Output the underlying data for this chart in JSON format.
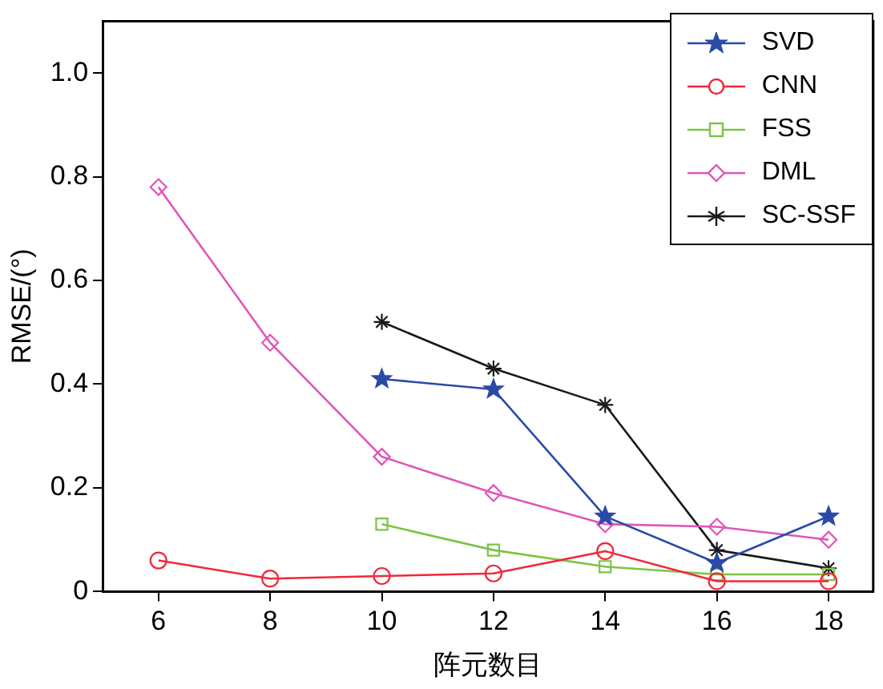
{
  "chart_data": {
    "type": "line",
    "xlabel": "阵元数目",
    "ylabel": "RMSE/(°)",
    "x": [
      6,
      8,
      10,
      12,
      14,
      16,
      18
    ],
    "xlim": [
      5,
      18.8
    ],
    "xticks": [
      6,
      8,
      10,
      12,
      14,
      16,
      18
    ],
    "ylim": [
      0,
      1.1
    ],
    "yticks": [
      0,
      0.2,
      0.4,
      0.6,
      0.8,
      {
        "value": 1,
        "label": "1.0"
      }
    ],
    "grid": false,
    "legend": "top right",
    "line_style": "solid",
    "series": [
      {
        "name": "SVD",
        "color": "#2b4aa8",
        "marker": "star",
        "values": [
          null,
          null,
          0.41,
          0.39,
          0.145,
          0.055,
          0.145
        ]
      },
      {
        "name": "CNN",
        "color": "#f0283c",
        "marker": "circle",
        "values": [
          0.06,
          0.025,
          0.03,
          0.035,
          0.078,
          0.02,
          0.02
        ]
      },
      {
        "name": "FSS",
        "color": "#7cc444",
        "marker": "square",
        "values": [
          null,
          null,
          0.13,
          0.08,
          0.048,
          0.033,
          0.033
        ]
      },
      {
        "name": "DML",
        "color": "#e055b8",
        "marker": "diamond",
        "values": [
          0.78,
          0.48,
          0.26,
          0.19,
          0.13,
          0.125,
          0.1
        ]
      },
      {
        "name": "SC-SSF",
        "color": "#1a1a1a",
        "marker": "cross",
        "values": [
          null,
          null,
          0.52,
          0.43,
          0.36,
          0.08,
          0.045
        ]
      }
    ]
  }
}
